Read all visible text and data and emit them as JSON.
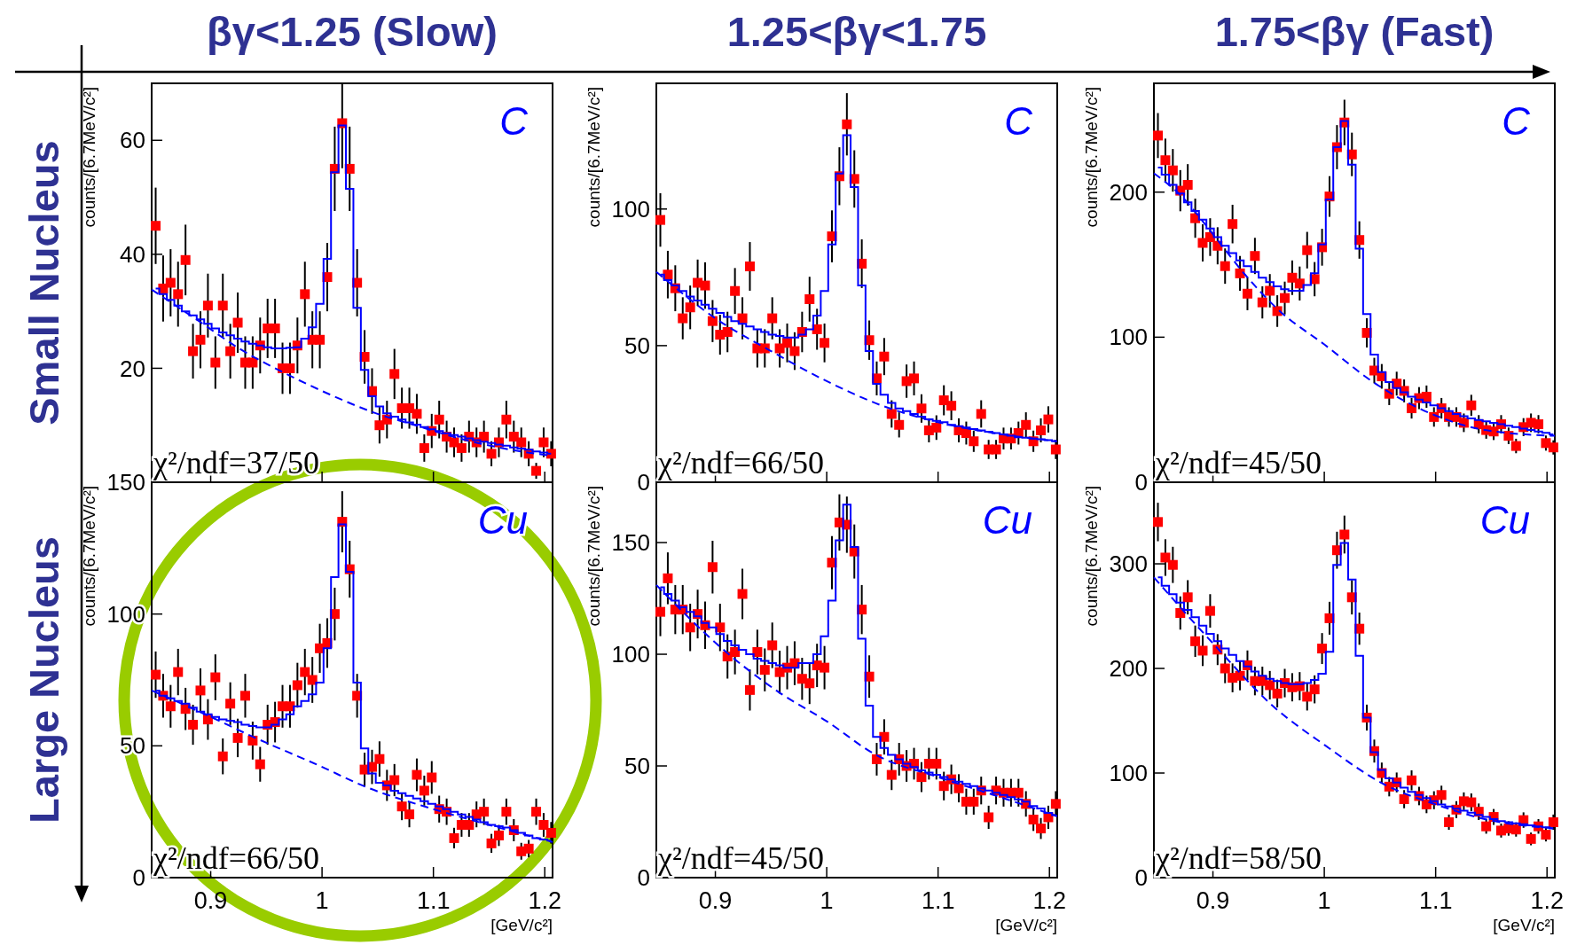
{
  "chart_data": [
    {
      "type": "scatter",
      "title": "βγ<1.25 (Slow)",
      "ylabel": "counts/[6.7MeV/c²]",
      "annotations": [
        "C",
        "χ²/ndf=37/50"
      ],
      "xlim": [
        0.847,
        1.207
      ],
      "ylim": [
        0,
        70
      ],
      "xticks": [
        0.9,
        1,
        1.1,
        1.2
      ],
      "yticks": [
        20,
        40,
        60
      ],
      "tick_labels": "y",
      "x": [
        0.8506,
        0.8573,
        0.864,
        0.8707,
        0.8774,
        0.8841,
        0.8908,
        0.8975,
        0.9042,
        0.9109,
        0.9176,
        0.9243,
        0.931,
        0.9377,
        0.9444,
        0.9511,
        0.9578,
        0.9645,
        0.9712,
        0.9779,
        0.9846,
        0.9913,
        0.998,
        1.0047,
        1.0114,
        1.0181,
        1.0248,
        1.0315,
        1.0382,
        1.0449,
        1.0516,
        1.0583,
        1.065,
        1.0717,
        1.0784,
        1.0851,
        1.0918,
        1.0985,
        1.1052,
        1.1119,
        1.1186,
        1.1253,
        1.132,
        1.1387,
        1.1454,
        1.1521,
        1.1588,
        1.1655,
        1.1722,
        1.1789,
        1.1856,
        1.1923,
        1.199,
        1.2057
      ],
      "series": [
        {
          "type": "scatter",
          "color": "#ff0000",
          "marker": "square",
          "values": [
            45,
            34,
            35,
            33,
            39,
            23,
            25,
            31,
            21,
            31,
            23,
            28,
            21,
            21,
            24,
            27,
            27,
            20,
            20,
            24,
            33,
            25,
            25,
            36,
            55,
            63,
            55,
            35,
            22,
            16,
            10,
            11,
            19,
            13,
            13,
            12,
            6,
            9,
            11,
            8,
            7,
            6,
            8,
            7,
            8,
            5,
            7,
            11,
            8,
            7,
            5,
            2,
            7,
            5
          ],
          "errors": [
            6.7,
            5.8,
            5.9,
            5.7,
            6.2,
            4.8,
            5,
            5.6,
            4.6,
            5.6,
            4.8,
            5.3,
            4.6,
            4.6,
            4.9,
            5.2,
            5.2,
            4.5,
            4.5,
            4.9,
            5.7,
            5,
            5,
            6,
            7.4,
            [
              55.1,
              70
            ],
            7.4,
            5.9,
            4.7,
            4,
            3.2,
            3.3,
            4.4,
            3.6,
            3.6,
            3.5,
            2.4,
            3,
            3.3,
            2.8,
            2.6,
            2.4,
            2.8,
            2.6,
            2.8,
            2.2,
            2.6,
            3.3,
            2.8,
            2.6,
            2.2,
            1.4,
            2.6,
            2.2
          ]
        },
        {
          "type": "step",
          "color": "#0000ff",
          "values": [
            34,
            33,
            32,
            31,
            30,
            29.3,
            28.6,
            27.8,
            27,
            26.3,
            25.8,
            25.2,
            24.7,
            24.3,
            24,
            23.7,
            23.5,
            23.5,
            23.6,
            23.7,
            25.2,
            27.2,
            31.3,
            39.2,
            54.4,
            62.6,
            51.5,
            30.6,
            19.7,
            15.1,
            13.3,
            12.1,
            11.5,
            11.0,
            10.5,
            10.1,
            9.7,
            9.3,
            9.0,
            8.6,
            8.3,
            8.0,
            7.7,
            7.4,
            7.1,
            6.9,
            6.6,
            6.4,
            6.1,
            5.9,
            5.7,
            5.4,
            5.2,
            5.0
          ]
        },
        {
          "type": "line",
          "color": "#0000ff",
          "line_style": "dashed",
          "x": [
            0.847,
            0.887,
            0.927,
            0.967,
            1.007,
            1.047,
            1.087,
            1.127,
            1.167,
            1.207
          ],
          "values": [
            33.8,
            28.6,
            23.3,
            19.1,
            15.4,
            12.2,
            9.8,
            7.5,
            5.8,
            4.6
          ]
        }
      ]
    },
    {
      "type": "scatter",
      "title": "1.25<βγ<1.75",
      "ylabel": "counts/[6.7MeV/c²]",
      "annotations": [
        "C",
        "χ²/ndf=66/50"
      ],
      "xlim": [
        0.847,
        1.207
      ],
      "ylim": [
        0,
        146
      ],
      "xticks": [
        0.9,
        1,
        1.1,
        1.2
      ],
      "yticks": [
        0,
        50,
        100
      ],
      "tick_labels": "y",
      "x": [
        0.8506,
        0.8573,
        0.864,
        0.8707,
        0.8774,
        0.8841,
        0.8908,
        0.8975,
        0.9042,
        0.9109,
        0.9176,
        0.9243,
        0.931,
        0.9377,
        0.9444,
        0.9511,
        0.9578,
        0.9645,
        0.9712,
        0.9779,
        0.9846,
        0.9913,
        0.998,
        1.0047,
        1.0114,
        1.0181,
        1.0248,
        1.0315,
        1.0382,
        1.0449,
        1.0516,
        1.0583,
        1.065,
        1.0717,
        1.0784,
        1.0851,
        1.0918,
        1.0985,
        1.1052,
        1.1119,
        1.1186,
        1.1253,
        1.132,
        1.1387,
        1.1454,
        1.1521,
        1.1588,
        1.1655,
        1.1722,
        1.1789,
        1.1856,
        1.1923,
        1.199,
        1.2057
      ],
      "series": [
        {
          "type": "scatter",
          "color": "#ff0000",
          "marker": "square",
          "values": [
            96,
            76,
            71,
            60,
            64,
            73,
            72,
            59,
            54,
            55,
            70,
            60,
            79,
            49,
            49,
            60,
            49,
            51,
            48,
            55,
            67,
            56,
            51,
            90,
            112,
            131,
            111,
            80,
            52,
            38,
            46,
            25,
            21,
            37,
            38,
            27,
            19,
            20,
            30,
            28,
            19,
            18,
            15,
            25,
            12,
            12,
            16,
            16,
            18,
            21,
            15,
            19,
            23,
            12
          ],
          "errors": [
            9.8,
            8.7,
            8.4,
            7.7,
            8,
            8.5,
            8.5,
            7.7,
            7.3,
            7.4,
            8.4,
            7.7,
            8.9,
            7,
            7,
            7.7,
            7,
            7.1,
            6.9,
            7.4,
            8.2,
            7.5,
            7.1,
            9.5,
            10.6,
            11.4,
            10.5,
            8.9,
            7.2,
            6.2,
            6.8,
            5,
            4.6,
            6.1,
            6.2,
            5.2,
            4.4,
            4.5,
            5.5,
            5.3,
            4.4,
            4.2,
            3.9,
            5,
            3.5,
            3.5,
            4,
            4,
            4.2,
            4.6,
            3.9,
            4.4,
            4.8,
            3.5
          ]
        },
        {
          "type": "step",
          "color": "#0000ff",
          "values": [
            76,
            74,
            72,
            70,
            68,
            66.5,
            65,
            63.5,
            62,
            60.5,
            59,
            58,
            57,
            56,
            55,
            54,
            53.5,
            53,
            53,
            54,
            56,
            61,
            70,
            87,
            113,
            127,
            108,
            72,
            48,
            36,
            32,
            29,
            27,
            26,
            25,
            24,
            23,
            22.5,
            22,
            21,
            20.5,
            20,
            19.5,
            19,
            18.5,
            18,
            17.5,
            17,
            16.5,
            16.3,
            16,
            15.7,
            15.4,
            15
          ]
        },
        {
          "type": "line",
          "color": "#0000ff",
          "line_style": "dashed",
          "x": [
            0.847,
            0.9,
            0.95,
            1.0,
            1.05,
            1.1,
            1.15,
            1.207
          ],
          "values": [
            77,
            60,
            48,
            37,
            28,
            22,
            18,
            15
          ]
        }
      ]
    },
    {
      "type": "scatter",
      "title": "1.75<βγ (Fast)",
      "ylabel": "counts/[6.7MeV/c²]",
      "annotations": [
        "C",
        "χ²/ndf=45/50"
      ],
      "xlim": [
        0.847,
        1.207
      ],
      "ylim": [
        0,
        275
      ],
      "xticks": [
        0.9,
        1,
        1.1,
        1.2
      ],
      "yticks": [
        0,
        100,
        200
      ],
      "tick_labels": "y",
      "x": [
        0.8506,
        0.8573,
        0.864,
        0.8707,
        0.8774,
        0.8841,
        0.8908,
        0.8975,
        0.9042,
        0.9109,
        0.9176,
        0.9243,
        0.931,
        0.9377,
        0.9444,
        0.9511,
        0.9578,
        0.9645,
        0.9712,
        0.9779,
        0.9846,
        0.9913,
        0.998,
        1.0047,
        1.0114,
        1.0181,
        1.0248,
        1.0315,
        1.0382,
        1.0449,
        1.0516,
        1.0583,
        1.065,
        1.0717,
        1.0784,
        1.0851,
        1.0918,
        1.0985,
        1.1052,
        1.1119,
        1.1186,
        1.1253,
        1.132,
        1.1387,
        1.1454,
        1.1521,
        1.1588,
        1.1655,
        1.1722,
        1.1789,
        1.1856,
        1.1923,
        1.199,
        1.2057
      ],
      "series": [
        {
          "type": "scatter",
          "color": "#ff0000",
          "marker": "square",
          "values": [
            239,
            222,
            215,
            201,
            205,
            182,
            165,
            169,
            163,
            149,
            178,
            144,
            130,
            156,
            124,
            132,
            118,
            127,
            141,
            137,
            160,
            140,
            162,
            197,
            231,
            248,
            226,
            167,
            103,
            77,
            73,
            61,
            68,
            63,
            51,
            58,
            59,
            45,
            51,
            45,
            45,
            41,
            53,
            40,
            36,
            35,
            40,
            32,
            25,
            38,
            41,
            40,
            27,
            24
          ],
          "errors": [
            15.5,
            14.9,
            14.7,
            14.2,
            14.3,
            13.5,
            12.8,
            13,
            12.8,
            12.2,
            13.3,
            12,
            11.4,
            12.5,
            11.1,
            11.5,
            10.9,
            11.3,
            11.9,
            11.7,
            12.6,
            11.8,
            12.7,
            14,
            15.2,
            15.7,
            15,
            12.9,
            10.1,
            8.8,
            8.5,
            7.8,
            8.2,
            7.9,
            7.1,
            7.6,
            7.7,
            6.7,
            7.1,
            6.7,
            6.7,
            6.4,
            7.3,
            6.3,
            6,
            5.9,
            6.3,
            5.7,
            5,
            6.2,
            6.4,
            6.3,
            5.2,
            4.9
          ]
        },
        {
          "type": "step",
          "color": "#0000ff",
          "values": [
            217,
            212,
            205,
            199,
            193,
            187,
            181,
            175,
            169,
            163,
            158,
            153,
            149,
            145,
            141,
            138,
            135,
            133,
            132,
            132,
            136,
            144,
            164,
            195,
            231,
            249,
            219,
            161,
            116,
            88,
            76,
            69,
            65,
            62,
            59,
            57,
            55,
            53,
            51,
            49,
            47,
            45.5,
            44,
            43,
            42,
            41,
            40,
            39,
            38,
            37,
            36,
            35,
            34,
            33
          ]
        },
        {
          "type": "line",
          "color": "#0000ff",
          "line_style": "dashed",
          "x": [
            0.847,
            0.872,
            0.9,
            0.929,
            0.96,
            1.0,
            1.044,
            1.1,
            1.144,
            1.207
          ],
          "values": [
            213,
            197,
            171,
            143,
            118,
            95,
            69,
            46,
            36,
            32
          ]
        }
      ]
    },
    {
      "type": "scatter",
      "ylabel": "counts/[6.7MeV/c²]",
      "xlabel": "[GeV/c²]",
      "annotations": [
        "Cu",
        "χ²/ndf=66/50"
      ],
      "xlim": [
        0.847,
        1.207
      ],
      "ylim": [
        0,
        150
      ],
      "xticks": [
        0.9,
        1,
        1.1,
        1.2
      ],
      "yticks": [
        0,
        50,
        100,
        150
      ],
      "x": [
        0.8506,
        0.8573,
        0.864,
        0.8707,
        0.8774,
        0.8841,
        0.8908,
        0.8975,
        0.9042,
        0.9109,
        0.9176,
        0.9243,
        0.931,
        0.9377,
        0.9444,
        0.9511,
        0.9578,
        0.9645,
        0.9712,
        0.9779,
        0.9846,
        0.9913,
        0.998,
        1.0047,
        1.0114,
        1.0181,
        1.0248,
        1.0315,
        1.0382,
        1.0449,
        1.0516,
        1.0583,
        1.065,
        1.0717,
        1.0784,
        1.0851,
        1.0918,
        1.0985,
        1.1052,
        1.1119,
        1.1186,
        1.1253,
        1.132,
        1.1387,
        1.1454,
        1.1521,
        1.1588,
        1.1655,
        1.1722,
        1.1789,
        1.1856,
        1.1923,
        1.199,
        1.2057
      ],
      "series": [
        {
          "type": "scatter",
          "color": "#ff0000",
          "marker": "square",
          "values": [
            77,
            69,
            65,
            78,
            64,
            58,
            71,
            60,
            76,
            46,
            66,
            53,
            69,
            52,
            43,
            58,
            59,
            65,
            65,
            73,
            78,
            75,
            87,
            89,
            100,
            135,
            117,
            69,
            41,
            42,
            45,
            35,
            37,
            27,
            24,
            39,
            33,
            38,
            26,
            25,
            15,
            20,
            20,
            24,
            25,
            13,
            16,
            25,
            18,
            10,
            11,
            25,
            20,
            17
          ],
          "errors": [
            8.8,
            8.3,
            8.1,
            8.8,
            8,
            7.6,
            8.4,
            7.7,
            8.7,
            6.8,
            8.1,
            7.3,
            8.3,
            7.2,
            6.6,
            7.6,
            7.7,
            8.1,
            8.1,
            8.5,
            8.8,
            8.7,
            9.3,
            9.4,
            10,
            11.6,
            10.8,
            8.3,
            6.4,
            6.5,
            6.7,
            5.9,
            6.1,
            5.2,
            4.9,
            6.2,
            5.7,
            6.2,
            5.1,
            5,
            3.9,
            4.5,
            4.5,
            4.9,
            5,
            3.6,
            4,
            5,
            4.2,
            3.2,
            3.3,
            5,
            4.5,
            4.1
          ]
        },
        {
          "type": "step",
          "color": "#0000ff",
          "values": [
            71,
            69,
            68,
            67,
            66,
            64.5,
            63,
            62,
            61,
            60,
            59.5,
            59,
            58,
            57.5,
            57,
            57,
            58,
            60,
            62,
            65,
            67,
            69.5,
            74,
            87,
            114,
            134,
            116,
            74,
            49,
            39.5,
            36,
            35,
            33,
            32,
            31,
            30,
            29,
            28,
            27,
            26,
            25,
            24,
            23,
            22,
            21,
            20,
            19.5,
            19,
            18,
            17,
            16,
            15,
            14.5,
            14
          ]
        },
        {
          "type": "line",
          "color": "#0000ff",
          "line_style": "dashed",
          "x": [
            0.847,
            0.9,
            0.935,
            1.0,
            1.036,
            1.1,
            1.15,
            1.207
          ],
          "values": [
            71,
            61,
            54,
            42,
            35,
            26,
            20,
            13.5
          ]
        }
      ]
    },
    {
      "type": "scatter",
      "ylabel": "counts/[6.7MeV/c²]",
      "xlabel": "[GeV/c²]",
      "annotations": [
        "Cu",
        "χ²/ndf=45/50"
      ],
      "xlim": [
        0.847,
        1.207
      ],
      "ylim": [
        0,
        177
      ],
      "xticks": [
        0.9,
        1,
        1.1,
        1.2
      ],
      "yticks": [
        0,
        50,
        100,
        150
      ],
      "x": [
        0.8506,
        0.8573,
        0.864,
        0.8707,
        0.8774,
        0.8841,
        0.8908,
        0.8975,
        0.9042,
        0.9109,
        0.9176,
        0.9243,
        0.931,
        0.9377,
        0.9444,
        0.9511,
        0.9578,
        0.9645,
        0.9712,
        0.9779,
        0.9846,
        0.9913,
        0.998,
        1.0047,
        1.0114,
        1.0181,
        1.0248,
        1.0315,
        1.0382,
        1.0449,
        1.0516,
        1.0583,
        1.065,
        1.0717,
        1.0784,
        1.0851,
        1.0918,
        1.0985,
        1.1052,
        1.1119,
        1.1186,
        1.1253,
        1.132,
        1.1387,
        1.1454,
        1.1521,
        1.1588,
        1.1655,
        1.1722,
        1.1789,
        1.1856,
        1.1923,
        1.199,
        1.2057
      ],
      "series": [
        {
          "type": "scatter",
          "color": "#ff0000",
          "marker": "square",
          "values": [
            119,
            134,
            120,
            120,
            112,
            118,
            113,
            139,
            112,
            99,
            101,
            127,
            84,
            101,
            93,
            104,
            92,
            94,
            96,
            89,
            87,
            95,
            94,
            141,
            159,
            158,
            146,
            120,
            90,
            53,
            63,
            46,
            53,
            50,
            51,
            45,
            51,
            51,
            41,
            44,
            40,
            34,
            34,
            39,
            27,
            39,
            38,
            38,
            38,
            33,
            26,
            22,
            27,
            33
          ],
          "errors": [
            10.9,
            11.6,
            11,
            11,
            10.6,
            10.9,
            10.6,
            11.8,
            10.6,
            9.9,
            10,
            11.3,
            9.2,
            10,
            9.6,
            10.2,
            9.6,
            9.7,
            9.8,
            9.4,
            9.3,
            9.7,
            9.7,
            11.9,
            12.6,
            12.6,
            12.1,
            11,
            9.5,
            7.3,
            7.9,
            6.8,
            7.3,
            7.1,
            7.1,
            6.7,
            7.1,
            7.1,
            6.4,
            6.6,
            6.3,
            5.8,
            5.8,
            6.2,
            5.2,
            6.2,
            6.2,
            6.2,
            6.2,
            5.7,
            5.1,
            4.7,
            5.2,
            5.7
          ]
        },
        {
          "type": "step",
          "color": "#0000ff",
          "values": [
            130,
            127,
            124,
            121,
            119,
            117,
            114,
            112,
            109,
            106,
            104,
            102,
            100,
            98,
            97,
            96,
            95,
            94,
            94,
            96,
            96,
            100,
            108,
            124,
            151,
            167,
            148,
            107,
            77,
            63,
            58,
            55,
            53,
            51,
            49.5,
            48,
            47,
            46,
            45,
            44,
            43,
            42,
            41,
            40,
            39,
            38,
            37,
            36,
            35,
            34,
            32,
            31,
            29,
            28
          ]
        },
        {
          "type": "line",
          "color": "#0000ff",
          "line_style": "dashed",
          "x": [
            0.847,
            0.905,
            0.957,
            1.0,
            1.044,
            1.1,
            1.15,
            1.207
          ],
          "values": [
            131,
            103,
            83,
            70,
            55,
            45,
            37,
            27.5
          ]
        }
      ]
    },
    {
      "type": "scatter",
      "ylabel": "counts/[6.7MeV/c²]",
      "xlabel": "[GeV/c²]",
      "annotations": [
        "Cu",
        "χ²/ndf=58/50"
      ],
      "xlim": [
        0.847,
        1.207
      ],
      "ylim": [
        0,
        378
      ],
      "xticks": [
        0.9,
        1,
        1.1,
        1.2
      ],
      "yticks": [
        0,
        100,
        200,
        300
      ],
      "x": [
        0.8506,
        0.8573,
        0.864,
        0.8707,
        0.8774,
        0.8841,
        0.8908,
        0.8975,
        0.9042,
        0.9109,
        0.9176,
        0.9243,
        0.931,
        0.9377,
        0.9444,
        0.9511,
        0.9578,
        0.9645,
        0.9712,
        0.9779,
        0.9846,
        0.9913,
        0.998,
        1.0047,
        1.0114,
        1.0181,
        1.0248,
        1.0315,
        1.0382,
        1.0449,
        1.0516,
        1.0583,
        1.065,
        1.0717,
        1.0784,
        1.0851,
        1.0918,
        1.0985,
        1.1052,
        1.1119,
        1.1186,
        1.1253,
        1.132,
        1.1387,
        1.1454,
        1.1521,
        1.1588,
        1.1655,
        1.1722,
        1.1789,
        1.1856,
        1.1923,
        1.199,
        1.2057
      ],
      "series": [
        {
          "type": "scatter",
          "color": "#ff0000",
          "marker": "square",
          "values": [
            340,
            306,
            299,
            253,
            268,
            226,
            217,
            255,
            218,
            200,
            191,
            193,
            203,
            188,
            188,
            184,
            176,
            186,
            182,
            183,
            173,
            180,
            219,
            248,
            313,
            328,
            268,
            238,
            153,
            121,
            100,
            87,
            91,
            75,
            93,
            78,
            70,
            74,
            79,
            53,
            65,
            73,
            72,
            63,
            49,
            58,
            45,
            47,
            46,
            55,
            37,
            49,
            41,
            53
          ],
          "errors": [
            18.4,
            17.5,
            17.3,
            15.9,
            16.4,
            15,
            14.7,
            16,
            14.8,
            14.1,
            13.8,
            13.9,
            14.2,
            13.7,
            13.7,
            13.6,
            13.3,
            13.6,
            13.5,
            13.5,
            13.2,
            13.4,
            14.8,
            15.7,
            17.7,
            18.1,
            16.4,
            15.4,
            12.4,
            11,
            10,
            9.3,
            9.5,
            8.7,
            9.6,
            8.8,
            8.4,
            8.6,
            8.9,
            7.3,
            8.1,
            8.5,
            8.5,
            7.9,
            7,
            7.6,
            6.7,
            6.9,
            6.8,
            7.4,
            6.1,
            7,
            6.4,
            7.3
          ]
        },
        {
          "type": "step",
          "color": "#0000ff",
          "values": [
            287,
            279,
            271,
            263,
            256,
            249,
            241,
            233,
            226,
            219,
            213,
            207,
            202,
            197,
            193,
            190,
            188,
            186,
            185,
            185,
            186,
            189,
            195,
            216,
            299,
            320,
            285,
            212,
            153,
            120,
            103,
            95,
            91,
            86,
            82,
            79,
            76,
            73,
            70,
            68,
            66,
            64,
            62,
            60,
            58,
            56,
            54,
            53,
            52,
            51,
            50,
            49,
            48,
            47
          ]
        },
        {
          "type": "line",
          "color": "#0000ff",
          "line_style": "dashed",
          "x": [
            0.847,
            0.9,
            0.955,
            1.0,
            1.056,
            1.1,
            1.144,
            1.207
          ],
          "values": [
            287,
            224,
            163,
            127,
            88,
            70,
            56,
            47
          ]
        }
      ]
    },
    {
      "type": "other",
      "annotations": [
        "Small Nucleus",
        "Large Nucleus"
      ]
    }
  ]
}
